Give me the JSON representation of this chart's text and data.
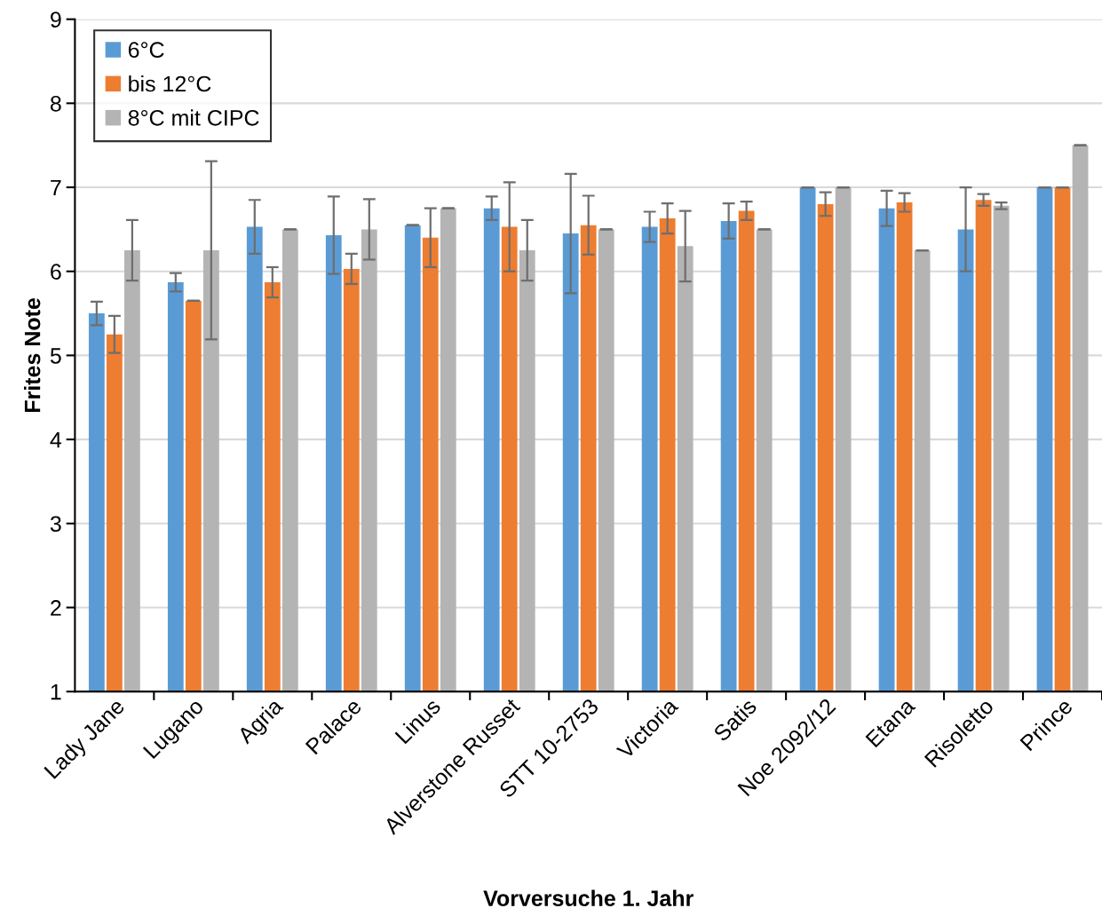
{
  "chart_data": {
    "type": "bar",
    "xlabel": "Vorversuche 1. Jahr",
    "ylabel": "Frites Note",
    "categories": [
      "Lady Jane",
      "Lugano",
      "Agria",
      "Palace",
      "Linus",
      "Alverstone Russet",
      "STT 10-2753",
      "Victoria",
      "Satis",
      "Noe 2092/12",
      "Etana",
      "Risoletto",
      "Prince"
    ],
    "series": [
      {
        "name": "6°C",
        "color": "#5b9bd5",
        "values": [
          5.5,
          5.87,
          6.53,
          6.43,
          6.55,
          6.75,
          6.45,
          6.53,
          6.6,
          7,
          6.75,
          6.5,
          7
        ],
        "errors": [
          0.14,
          0.11,
          0.32,
          0.46,
          0,
          0.14,
          0.71,
          0.18,
          0.21,
          0,
          0.21,
          0.5,
          0
        ]
      },
      {
        "name": "bis 12°C",
        "color": "#ed7d31",
        "values": [
          5.25,
          5.65,
          5.87,
          6.03,
          6.4,
          6.53,
          6.55,
          6.63,
          6.72,
          6.8,
          6.82,
          6.85,
          7
        ],
        "errors": [
          0.22,
          0,
          0.18,
          0.18,
          0.35,
          0.53,
          0.35,
          0.18,
          0.11,
          0.14,
          0.11,
          0.07,
          0
        ]
      },
      {
        "name": "8°C mit CIPC",
        "color": "#b4b4b4",
        "values": [
          6.25,
          6.25,
          6.5,
          6.5,
          6.75,
          6.25,
          6.5,
          6.3,
          6.5,
          7,
          6.25,
          6.78,
          7.5
        ],
        "errors": [
          0.36,
          1.06,
          0,
          0.36,
          0,
          0.36,
          0,
          0.42,
          0,
          0,
          0,
          0.04,
          0
        ]
      }
    ],
    "ylim": [
      1,
      9
    ],
    "yticks": [
      1,
      2,
      3,
      4,
      5,
      6,
      7,
      8,
      9
    ],
    "grid": "y",
    "legend": "top left"
  }
}
